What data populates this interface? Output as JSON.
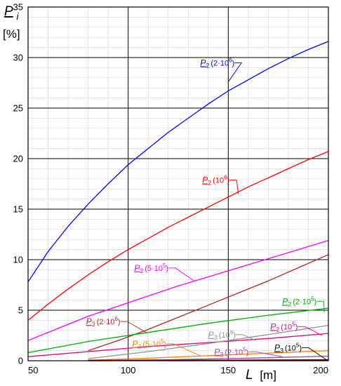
{
  "chart_data": {
    "type": "line",
    "title": "",
    "xlabel": {
      "symbol": "L",
      "unit": "[m]"
    },
    "ylabel": {
      "symbol": "P",
      "sub": "i",
      "unit": "[%]"
    },
    "xlim": [
      50,
      200
    ],
    "ylim": [
      0,
      35
    ],
    "xticks": [
      "50",
      "100",
      "150",
      "200"
    ],
    "yticks": [
      "0",
      "5",
      "10",
      "15",
      "20",
      "25",
      "30",
      "35"
    ],
    "grid": true,
    "series": [
      {
        "name": "P2 (2·10^6)",
        "sym": "P",
        "sub": "2",
        "val": "(2·10",
        "exp": "6",
        "close": ")",
        "color": "#0000ff",
        "x": [
          50,
          60,
          70,
          80,
          90,
          100,
          110,
          120,
          130,
          140,
          150,
          160,
          170,
          180,
          190,
          200
        ],
        "y": [
          7.8,
          10.8,
          13.3,
          15.5,
          17.5,
          19.4,
          21.0,
          22.6,
          24.0,
          25.4,
          26.7,
          27.8,
          28.9,
          29.9,
          30.8,
          31.6
        ],
        "label_at": [
          150,
          27.6
        ],
        "text_pos": [
          136,
          29.2
        ]
      },
      {
        "name": "P2 (10^6)",
        "sym": "P",
        "sub": "2",
        "val": "(10",
        "exp": "6",
        "close": ")",
        "color": "#ff0000",
        "x": [
          50,
          60,
          70,
          80,
          90,
          100,
          110,
          120,
          130,
          140,
          150,
          160,
          170,
          180,
          190,
          200
        ],
        "y": [
          4.0,
          5.6,
          7.1,
          8.5,
          9.8,
          11.0,
          12.1,
          13.2,
          14.2,
          15.2,
          16.2,
          17.2,
          18.1,
          19.0,
          19.9,
          20.7
        ],
        "label_at": [
          155,
          16.5
        ],
        "text_pos": [
          137,
          17.6
        ]
      },
      {
        "name": "P2 (5·10^5)",
        "sym": "P",
        "sub": "2",
        "val": "(5·10",
        "exp": "5",
        "close": ")",
        "color": "#ff00ff",
        "x": [
          50,
          65,
          80,
          95,
          110,
          125,
          140,
          155,
          170,
          185,
          200
        ],
        "y": [
          2.0,
          3.2,
          4.4,
          5.4,
          6.4,
          7.4,
          8.3,
          9.2,
          10.1,
          11.0,
          11.9
        ],
        "label_at": [
          133,
          7.9
        ],
        "text_pos": [
          103,
          8.9
        ]
      },
      {
        "name": "P3 (2·10^6)",
        "sym": "P",
        "sub": "3",
        "val": "(2·10",
        "exp": "6",
        "close": ")",
        "color": "#a52a2a",
        "x": [
          80,
          95,
          110,
          125,
          140,
          155,
          170,
          185,
          200
        ],
        "y": [
          1.0,
          2.0,
          3.1,
          4.3,
          5.5,
          6.7,
          7.9,
          9.2,
          10.5
        ],
        "label_at": [
          109,
          2.8
        ],
        "text_pos": [
          79,
          3.6
        ]
      },
      {
        "name": "P2 (2·10^5)",
        "sym": "P",
        "sub": "2",
        "val": "(2·10",
        "exp": "5",
        "close": ")",
        "color": "#00aa00",
        "x": [
          50,
          80,
          110,
          140,
          170,
          200
        ],
        "y": [
          0.8,
          1.9,
          2.8,
          3.7,
          4.5,
          5.2
        ],
        "label_at": [
          198,
          4.8
        ],
        "text_pos": [
          177,
          5.6
        ]
      },
      {
        "name": "P2 (10^5)",
        "sym": "P",
        "sub": "2",
        "val": "(10",
        "exp": "5",
        "close": ")",
        "color": "#e6007e",
        "x": [
          50,
          80,
          110,
          140,
          170,
          200
        ],
        "y": [
          0.4,
          0.9,
          1.4,
          1.8,
          2.2,
          2.7
        ],
        "label_at": [
          197,
          2.5
        ],
        "text_pos": [
          171,
          3.1
        ]
      },
      {
        "name": "P3 (5·10^5)",
        "sym": "P",
        "sub": "3",
        "val": "(5·10",
        "exp": "5",
        "close": ")",
        "color": "#ff8000",
        "x": [
          80,
          110,
          140,
          170,
          200
        ],
        "y": [
          0.05,
          0.25,
          0.5,
          0.75,
          1.0
        ],
        "label_at": [
          136,
          0.5
        ],
        "text_pos": [
          102,
          1.4
        ]
      },
      {
        "name": "P3 (10^6)",
        "sym": "P",
        "sub": "3",
        "val": "(10",
        "exp": "6",
        "close": ")",
        "color": "#909090",
        "x": [
          80,
          110,
          140,
          170,
          200
        ],
        "y": [
          0.2,
          0.9,
          1.7,
          2.6,
          3.5
        ],
        "label_at": [
          164,
          2.0
        ],
        "text_pos": [
          140,
          2.3
        ]
      },
      {
        "name": "P3 (2·10^5)",
        "sym": "P",
        "sub": "3",
        "val": "(2·10",
        "exp": "5",
        "close": ")",
        "color": "#a040a0",
        "x": [
          80,
          120,
          160,
          200
        ],
        "y": [
          0.02,
          0.1,
          0.25,
          0.45
        ],
        "label_at": [
          177,
          0.4
        ],
        "text_pos": [
          143,
          0.6
        ]
      },
      {
        "name": "P3 (10^5)",
        "sym": "P",
        "sub": "3",
        "val": "(10",
        "exp": "5",
        "close": ")",
        "color": "#000000",
        "x": [
          80,
          120,
          160,
          200
        ],
        "y": [
          0.0,
          0.03,
          0.07,
          0.1
        ],
        "label_at": [
          199,
          0.1
        ],
        "text_pos": [
          173,
          1.0
        ]
      },
      {
        "name": "P3 (10^5) baseline",
        "sym": "",
        "sub": "",
        "val": "",
        "exp": "",
        "close": "",
        "color": "#8b0000",
        "x": [
          80,
          200
        ],
        "y": [
          0.05,
          0.05
        ]
      }
    ]
  }
}
